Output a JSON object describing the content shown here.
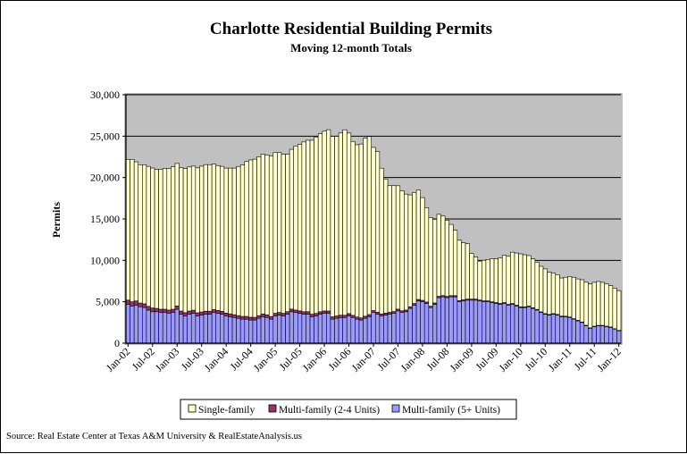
{
  "chart_data": {
    "type": "bar",
    "stacked": true,
    "title": "Charlotte Residential Building Permits",
    "subtitle": "Moving 12-month Totals",
    "ylabel": "Permits",
    "xlabel": "",
    "ylim": [
      0,
      30000
    ],
    "y_ticks": [
      "0",
      "5,000",
      "10,000",
      "15,000",
      "20,000",
      "25,000",
      "30,000"
    ],
    "x_tick_labels": [
      "Jan-02",
      "Jul-02",
      "Jan-03",
      "Jul-03",
      "Jan-04",
      "Jul-04",
      "Jan-05",
      "Jul-05",
      "Jan-06",
      "Jul-06",
      "Jan-07",
      "Jul-07",
      "Jan-08",
      "Jul-08",
      "Jan-09",
      "Jul-09",
      "Jan-10",
      "Jul-10",
      "Jan-11",
      "Jul-11",
      "Jan-12"
    ],
    "grid": true,
    "legend_position": "bottom",
    "colors": {
      "single_family": "#ffffcc",
      "multi_2_4": "#993366",
      "multi_5plus": "#9999ff",
      "plot_bg": "#c0c0c0"
    },
    "series": [
      {
        "name": "Single-family",
        "values": [
          17000,
          17200,
          16800,
          16700,
          16800,
          16900,
          16900,
          16800,
          16900,
          17000,
          17100,
          17200,
          17200,
          17300,
          17400,
          17400,
          17400,
          17500,
          17600,
          17700,
          17700,
          17600,
          17500,
          17500,
          17500,
          17600,
          17700,
          18000,
          18300,
          18700,
          19000,
          19100,
          19200,
          19300,
          19300,
          19400,
          19400,
          19300,
          19200,
          19000,
          19300,
          19800,
          20100,
          20500,
          20700,
          21000,
          21300,
          21500,
          21700,
          21900,
          21800,
          21700,
          22000,
          22400,
          21800,
          21000,
          20800,
          21000,
          21500,
          21500,
          19700,
          19400,
          17600,
          16200,
          15300,
          15200,
          14900,
          14500,
          14000,
          13500,
          13400,
          13200,
          12400,
          11400,
          10700,
          10100,
          9900,
          9600,
          9200,
          8600,
          7900,
          7300,
          6900,
          6700,
          5500,
          5100,
          4700,
          4900,
          5000,
          5200,
          5300,
          5500,
          5700,
          5800,
          6200,
          6300,
          6400,
          6300,
          6100,
          5900,
          5700,
          5500,
          5400,
          5100,
          4900,
          4800,
          4600,
          4700,
          4900,
          5000,
          5000,
          5100,
          5200,
          5300,
          5300,
          5300,
          5200,
          5100,
          5000,
          4900,
          4800
        ]
      },
      {
        "name": "Multi-family (2-4 Units)",
        "values": [
          500,
          500,
          500,
          450,
          450,
          450,
          450,
          400,
          400,
          400,
          400,
          400,
          400,
          380,
          380,
          380,
          380,
          370,
          370,
          360,
          360,
          350,
          350,
          350,
          340,
          340,
          340,
          330,
          330,
          330,
          330,
          320,
          320,
          320,
          320,
          320,
          310,
          310,
          310,
          310,
          310,
          300,
          300,
          300,
          300,
          300,
          300,
          290,
          290,
          280,
          280,
          280,
          280,
          270,
          270,
          260,
          260,
          250,
          250,
          250,
          240,
          240,
          230,
          230,
          220,
          220,
          210,
          210,
          200,
          200,
          190,
          180,
          180,
          170,
          170,
          160,
          160,
          150,
          150,
          140,
          140,
          130,
          130,
          120,
          120,
          120,
          110,
          110,
          110,
          100,
          100,
          100,
          100,
          90,
          90,
          90,
          90,
          80,
          80,
          80,
          80,
          80,
          70,
          70,
          70,
          70,
          70,
          60,
          60,
          60,
          60,
          60,
          60,
          50,
          50,
          50,
          50,
          50,
          50,
          50,
          50
        ]
      },
      {
        "name": "Multi-family (5+ Units)",
        "values": [
          4700,
          4500,
          4600,
          4400,
          4300,
          4000,
          3800,
          3800,
          3700,
          3700,
          3600,
          3700,
          4100,
          3500,
          3300,
          3500,
          3600,
          3300,
          3400,
          3500,
          3500,
          3700,
          3600,
          3500,
          3300,
          3200,
          3100,
          3000,
          2900,
          2900,
          2800,
          2800,
          3000,
          3200,
          3100,
          2900,
          3300,
          3400,
          3300,
          3500,
          3800,
          3700,
          3600,
          3500,
          3500,
          3200,
          3300,
          3500,
          3600,
          3600,
          2900,
          3000,
          3100,
          3100,
          3300,
          3100,
          2900,
          2800,
          3000,
          3200,
          3700,
          3500,
          3300,
          3400,
          3500,
          3600,
          3900,
          3700,
          3800,
          4200,
          4600,
          5100,
          5000,
          4800,
          4300,
          4700,
          5500,
          5600,
          5500,
          5600,
          5600,
          5000,
          5100,
          5200,
          5200,
          5200,
          5100,
          5000,
          5000,
          4900,
          4800,
          4700,
          4800,
          4600,
          4700,
          4500,
          4300,
          4300,
          4400,
          4200,
          4000,
          3700,
          3500,
          3400,
          3500,
          3400,
          3200,
          3200,
          3100,
          2900,
          2700,
          2500,
          2100,
          1800,
          2000,
          2100,
          2100,
          2000,
          1900,
          1700,
          1500
        ]
      }
    ]
  },
  "source_text": "Source: Real Estate Center at Texas A&M University & RealEstateAnalysis.us"
}
